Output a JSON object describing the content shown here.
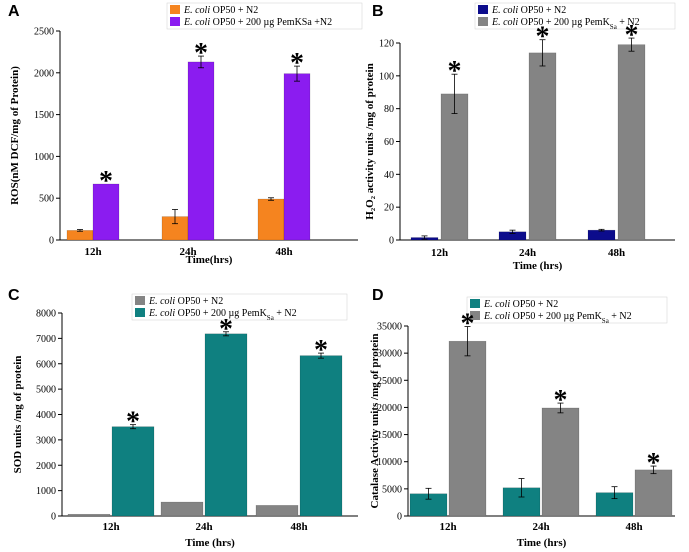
{
  "colors": {
    "orange": "#f5841f",
    "purple": "#8b1cf0",
    "navy": "#0c0c8c",
    "gray": "#848484",
    "teal": "#0f8080"
  },
  "chart_data": [
    {
      "type": "bar",
      "panel_label": "A",
      "categories": [
        "12h",
        "24h",
        "48h"
      ],
      "xlabel": "Time(hrs)",
      "ylabel": "ROS(nM DCF/mg of Protein)",
      "ylim": [
        0,
        2500
      ],
      "yticks": [
        0,
        500,
        1000,
        1500,
        2000,
        2500
      ],
      "series": [
        {
          "name_italic": "E. coli",
          "name_rest": " OP50 + N2",
          "color": "#f5841f",
          "values": [
            115,
            280,
            490
          ],
          "errors": [
            10,
            85,
            15
          ]
        },
        {
          "name_italic": "E. coli",
          "name_rest": " OP50 + 200 µg PemKSa +N2",
          "color": "#8b1cf0",
          "values": [
            670,
            2130,
            1990
          ],
          "errors": [
            0,
            70,
            90
          ]
        }
      ],
      "significance_marker": "*",
      "significant_series": 1
    },
    {
      "type": "bar",
      "panel_label": "B",
      "categories": [
        "12h",
        "24h",
        "48h"
      ],
      "xlabel": "Time (hrs)",
      "ylabel": "H₂O₂ activity units /mg of protein",
      "ylim": [
        0,
        120
      ],
      "yticks": [
        0,
        20,
        40,
        60,
        80,
        100,
        120
      ],
      "series": [
        {
          "name_italic": "E. coli",
          "name_rest": " OP50 + N2",
          "color": "#0c0c8c",
          "values": [
            1.5,
            5,
            6
          ],
          "errors": [
            1,
            1,
            0.5
          ]
        },
        {
          "name_italic": "E. coli",
          "name_rest": " OP50 + 200 µg PemK",
          "name_sub": "Sa",
          "name_after": " + N2",
          "color": "#848484",
          "values": [
            89,
            114,
            119
          ],
          "errors": [
            12,
            8,
            4
          ]
        }
      ],
      "significance_marker": "*",
      "significant_series": 1
    },
    {
      "type": "bar",
      "panel_label": "C",
      "categories": [
        "12h",
        "24h",
        "48h"
      ],
      "xlabel": "Time (hrs)",
      "ylabel": "SOD units /mg of protein",
      "ylim": [
        0,
        8000
      ],
      "yticks": [
        0,
        1000,
        2000,
        3000,
        4000,
        5000,
        6000,
        7000,
        8000
      ],
      "series": [
        {
          "name_italic": "E. coli",
          "name_rest": " OP50 + N2",
          "color": "#848484",
          "values": [
            70,
            550,
            420
          ],
          "errors": [
            0,
            0,
            0
          ]
        },
        {
          "name_italic": "E. coli",
          "name_rest": " OP50 + 200 µg PemK",
          "name_sub": "Sa",
          "name_after": " + N2",
          "color": "#0f8080",
          "values": [
            3520,
            7180,
            6320
          ],
          "errors": [
            80,
            80,
            100
          ]
        }
      ],
      "significance_marker": "*",
      "significant_series": 1
    },
    {
      "type": "bar",
      "panel_label": "D",
      "categories": [
        "12h",
        "24h",
        "48h"
      ],
      "xlabel": "Time (hrs)",
      "ylabel": "Catalase Activity units /mg of protein",
      "ylim": [
        0,
        35000
      ],
      "yticks": [
        0,
        5000,
        10000,
        15000,
        20000,
        25000,
        30000,
        35000
      ],
      "series": [
        {
          "name_italic": "E. coli",
          "name_rest": " OP50 + N2",
          "color": "#0f8080",
          "values": [
            4100,
            5200,
            4300
          ],
          "errors": [
            1000,
            1700,
            1100
          ]
        },
        {
          "name_italic": "E. coli",
          "name_rest": " OP50 + 200 µg PemK",
          "name_sub": "Sa",
          "name_after": " + N2",
          "color": "#848484",
          "values": [
            32200,
            19900,
            8500
          ],
          "errors": [
            2700,
            900,
            700
          ]
        }
      ],
      "significance_marker": "*",
      "significant_series": 1
    }
  ]
}
